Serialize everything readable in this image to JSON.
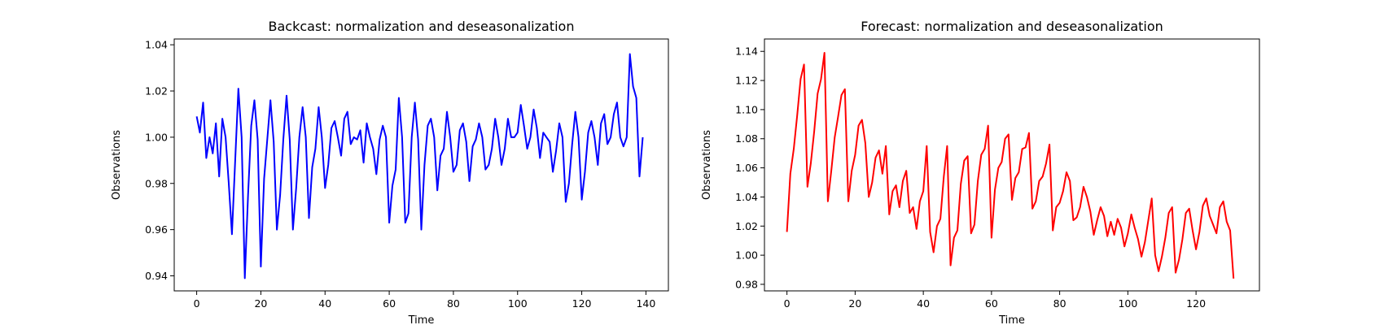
{
  "chart_data": [
    {
      "type": "line",
      "title": "Backcast: normalization and deseasonalization",
      "xlabel": "Time",
      "ylabel": "Observations",
      "xlim": [
        -7,
        147
      ],
      "ylim": [
        0.9335,
        1.0425
      ],
      "xticks": [
        0,
        20,
        40,
        60,
        80,
        100,
        120,
        140
      ],
      "yticks": [
        0.94,
        0.96,
        0.98,
        1.0,
        1.02,
        1.04
      ],
      "ytick_labels": [
        "0.94",
        "0.96",
        "0.98",
        "1.00",
        "1.02",
        "1.04"
      ],
      "grid": false,
      "color": "#0000ff",
      "series": [
        {
          "values": [
            1.009,
            1.002,
            1.015,
            0.991,
            1.0,
            0.993,
            1.006,
            0.983,
            1.008,
            1.0,
            0.98,
            0.958,
            0.99,
            1.021,
            1.0,
            0.939,
            0.975,
            1.005,
            1.016,
            0.999,
            0.944,
            0.982,
            0.999,
            1.016,
            0.998,
            0.96,
            0.975,
            0.999,
            1.018,
            0.999,
            0.96,
            0.978,
            1.0,
            1.013,
            1.0,
            0.965,
            0.987,
            0.995,
            1.013,
            1.0,
            0.978,
            0.988,
            1.004,
            1.007,
            1.0,
            0.992,
            1.008,
            1.011,
            0.997,
            1.0,
            0.999,
            1.003,
            0.989,
            1.006,
            1.0,
            0.995,
            0.984,
            0.999,
            1.005,
            1.0,
            0.963,
            0.979,
            0.986,
            1.017,
            1.0,
            0.963,
            0.967,
            1.0,
            1.015,
            0.999,
            0.96,
            0.988,
            1.005,
            1.008,
            1.0,
            0.977,
            0.992,
            0.995,
            1.011,
            1.0,
            0.985,
            0.988,
            1.003,
            1.006,
            0.998,
            0.981,
            0.996,
            0.999,
            1.006,
            1.0,
            0.986,
            0.988,
            0.995,
            1.008,
            1.0,
            0.988,
            0.995,
            1.008,
            1.0,
            1.0,
            1.002,
            1.014,
            1.005,
            0.995,
            1.0,
            1.012,
            1.004,
            0.991,
            1.002,
            1.0,
            0.998,
            0.985,
            0.994,
            1.006,
            1.0,
            0.972,
            0.98,
            0.997,
            1.011,
            1.0,
            0.973,
            0.985,
            1.002,
            1.007,
            1.0,
            0.988,
            1.006,
            1.01,
            0.997,
            1.0,
            1.01,
            1.015,
            1.0,
            0.996,
            1.0,
            1.036,
            1.022,
            1.017,
            0.983,
            1.0
          ]
        }
      ]
    },
    {
      "type": "line",
      "title": "Forecast: normalization and deseasonalization",
      "xlabel": "Time",
      "ylabel": "Observations",
      "xlim": [
        -6.6,
        138.6
      ],
      "ylim": [
        0.9755,
        1.1485
      ],
      "xticks": [
        0,
        20,
        40,
        60,
        80,
        100,
        120
      ],
      "yticks": [
        0.98,
        1.0,
        1.02,
        1.04,
        1.06,
        1.08,
        1.1,
        1.12,
        1.14
      ],
      "ytick_labels": [
        "0.98",
        "1.00",
        "1.02",
        "1.04",
        "1.06",
        "1.08",
        "1.10",
        "1.12",
        "1.14"
      ],
      "grid": false,
      "color": "#ff0000",
      "series": [
        {
          "values": [
            1.016,
            1.056,
            1.073,
            1.096,
            1.121,
            1.131,
            1.047,
            1.063,
            1.085,
            1.111,
            1.121,
            1.139,
            1.037,
            1.058,
            1.081,
            1.095,
            1.11,
            1.114,
            1.037,
            1.058,
            1.069,
            1.089,
            1.093,
            1.077,
            1.04,
            1.05,
            1.067,
            1.072,
            1.056,
            1.075,
            1.028,
            1.044,
            1.048,
            1.033,
            1.051,
            1.058,
            1.029,
            1.033,
            1.018,
            1.037,
            1.044,
            1.075,
            1.016,
            1.002,
            1.02,
            1.025,
            1.054,
            1.075,
            0.993,
            1.012,
            1.017,
            1.049,
            1.065,
            1.068,
            1.015,
            1.021,
            1.051,
            1.069,
            1.073,
            1.089,
            1.012,
            1.045,
            1.06,
            1.064,
            1.08,
            1.083,
            1.038,
            1.053,
            1.057,
            1.073,
            1.074,
            1.084,
            1.032,
            1.037,
            1.051,
            1.054,
            1.063,
            1.076,
            1.017,
            1.033,
            1.036,
            1.044,
            1.057,
            1.051,
            1.024,
            1.026,
            1.033,
            1.047,
            1.04,
            1.03,
            1.014,
            1.024,
            1.033,
            1.027,
            1.013,
            1.023,
            1.014,
            1.025,
            1.019,
            1.006,
            1.015,
            1.028,
            1.019,
            1.011,
            0.999,
            1.009,
            1.024,
            1.039,
            1.0,
            0.989,
            0.999,
            1.012,
            1.029,
            1.033,
            0.988,
            0.997,
            1.011,
            1.029,
            1.032,
            1.017,
            1.004,
            1.016,
            1.034,
            1.039,
            1.027,
            1.021,
            1.015,
            1.033,
            1.037,
            1.023,
            1.017,
            0.984
          ]
        }
      ]
    }
  ]
}
